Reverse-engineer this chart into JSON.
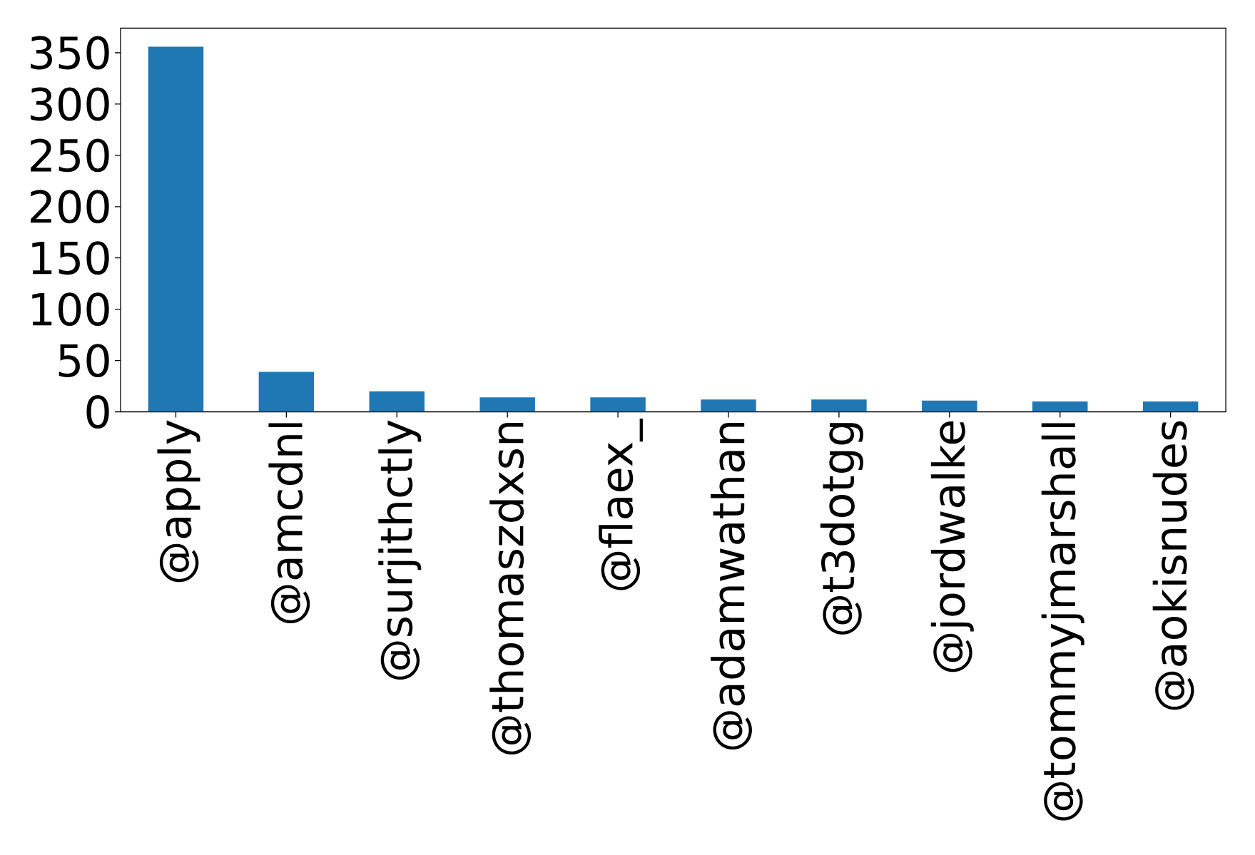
{
  "chart_data": {
    "type": "bar",
    "categories": [
      "@apply",
      "@amcdnl",
      "@surjithctly",
      "@thomaszdxsn",
      "@flaex_",
      "@adamwathan",
      "@t3dotgg",
      "@jordwalke",
      "@tommyjmarshall",
      "@aokisnudes"
    ],
    "values": [
      356,
      39,
      20,
      14,
      14,
      12,
      12,
      11,
      10,
      10
    ],
    "color": "#1f77b4",
    "ylim": [
      0,
      374
    ],
    "yticks": [
      0,
      50,
      100,
      150,
      200,
      250,
      300,
      350
    ]
  }
}
